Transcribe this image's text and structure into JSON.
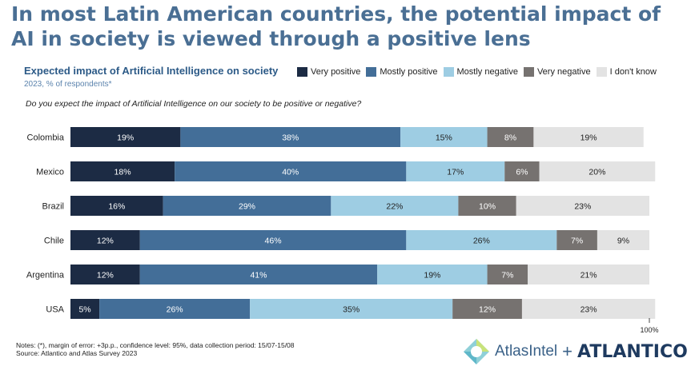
{
  "headline": "In most Latin American countries, the potential impact of AI in society is viewed through a positive lens",
  "question": "Do you expect the impact of Artificial Intelligence on our society to be positive or negative?",
  "notes": {
    "line1": "Notes: (*), margin of error: +3p.p., confidence level: 95%, data collection period: 15/07-15/08",
    "line2": "Source: Atlantico and Atlas Survey 2023"
  },
  "brand": {
    "logo1": "AtlasIntel",
    "plus": "+",
    "logo2": "ATLANTICO"
  },
  "chart_data": {
    "type": "bar",
    "orientation": "horizontal",
    "stacked": true,
    "title": "Expected impact of Artificial Intelligence on society",
    "subtitle": "2023, % of respondents*",
    "categories": [
      "Colombia",
      "Mexico",
      "Brazil",
      "Chile",
      "Argentina",
      "USA"
    ],
    "series": [
      {
        "name": "Very positive",
        "color": "#1c2b44",
        "label_color": "#ffffff",
        "values": [
          19,
          18,
          16,
          12,
          12,
          5
        ]
      },
      {
        "name": "Mostly positive",
        "color": "#436e98",
        "label_color": "#ffffff",
        "values": [
          38,
          40,
          29,
          46,
          41,
          26
        ]
      },
      {
        "name": "Mostly negative",
        "color": "#9ecde3",
        "label_color": "#222222",
        "values": [
          15,
          17,
          22,
          26,
          19,
          35
        ]
      },
      {
        "name": "Very negative",
        "color": "#767270",
        "label_color": "#ffffff",
        "values": [
          8,
          6,
          10,
          7,
          7,
          12
        ]
      },
      {
        "name": "I don't know",
        "color": "#e3e3e3",
        "label_color": "#222222",
        "values": [
          19,
          20,
          23,
          9,
          21,
          23
        ]
      }
    ],
    "xlim": [
      0,
      100
    ],
    "x_end_label": "100%",
    "legend_position": "top-right",
    "grid": false
  }
}
